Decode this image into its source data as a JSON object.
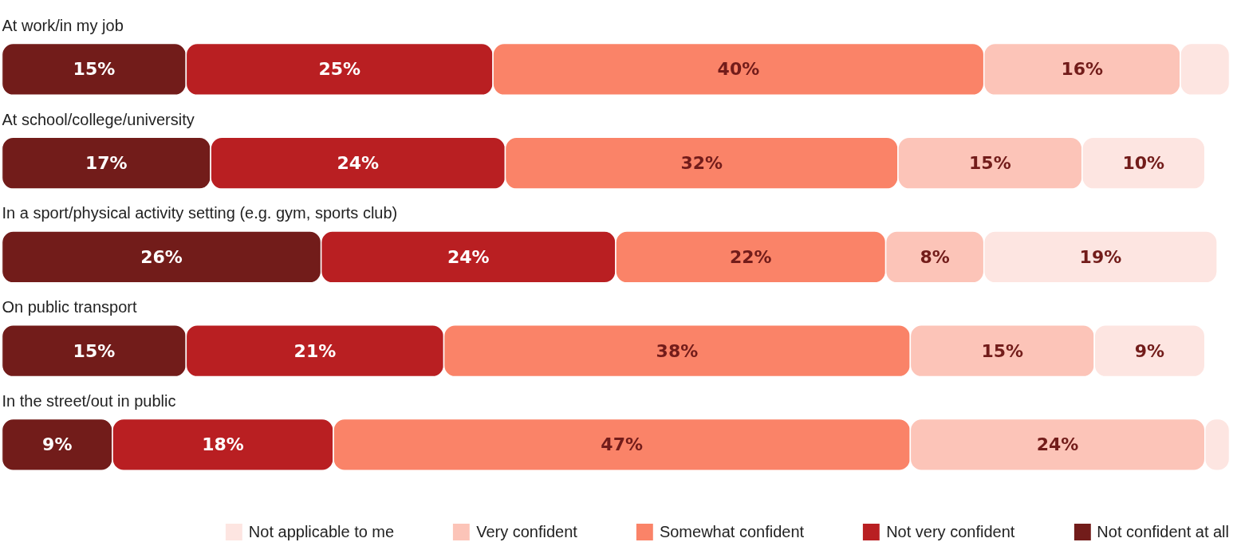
{
  "chart_data": {
    "type": "bar",
    "orientation": "horizontal",
    "stacked": true,
    "legend": "bottom",
    "grid": false,
    "categories": [
      "At work/in my job",
      "At school/college/university",
      "In a sport/physical activity setting (e.g. gym, sports club)",
      "On public transport",
      "In the street/out in public"
    ],
    "series": [
      {
        "name": "Not confident at all",
        "color": "#721c1a",
        "values": [
          15,
          17,
          26,
          15,
          9
        ],
        "value_labels": [
          "15%",
          "17%",
          "26%",
          "15%",
          "9%"
        ]
      },
      {
        "name": "Not very confident",
        "color": "#b91f22",
        "values": [
          25,
          24,
          24,
          21,
          18
        ],
        "value_labels": [
          "25%",
          "24%",
          "24%",
          "21%",
          "18%"
        ]
      },
      {
        "name": "Somewhat confident",
        "color": "#fa8368",
        "values": [
          40,
          32,
          22,
          38,
          47
        ],
        "value_labels": [
          "40%",
          "32%",
          "22%",
          "38%",
          "47%"
        ]
      },
      {
        "name": "Very confident",
        "color": "#fcc4b8",
        "values": [
          16,
          15,
          8,
          15,
          24
        ],
        "value_labels": [
          "16%",
          "15%",
          "8%",
          "15%",
          "24%"
        ]
      },
      {
        "name": "Not applicable to me",
        "color": "#fde5e1",
        "values": [
          4,
          10,
          19,
          9,
          2
        ],
        "value_labels": [
          null,
          "10%",
          "19%",
          "9%",
          null
        ]
      }
    ]
  }
}
